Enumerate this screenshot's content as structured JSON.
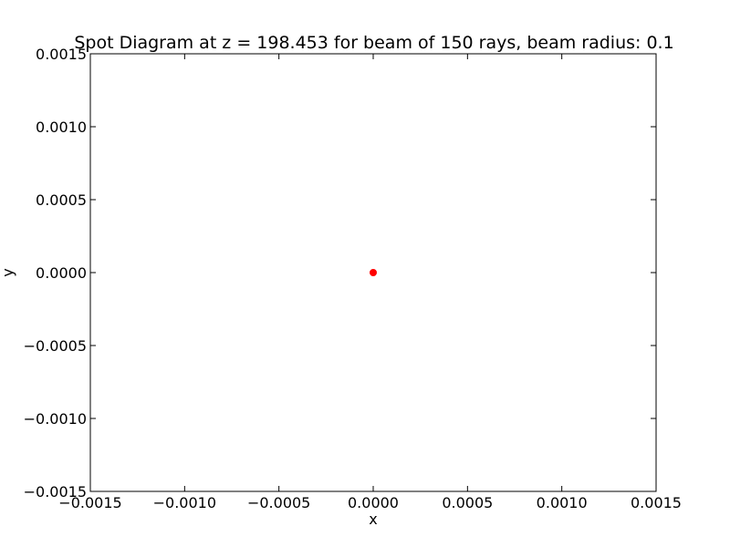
{
  "chart_data": {
    "type": "scatter",
    "title": "Spot Diagram at z = 198.453 for beam of 150 rays, beam radius: 0.1",
    "xlabel": "x",
    "ylabel": "y",
    "xlim": [
      -0.0015,
      0.0015
    ],
    "ylim": [
      -0.0015,
      0.0015
    ],
    "xticks": [
      -0.0015,
      -0.001,
      -0.0005,
      0.0,
      0.0005,
      0.001,
      0.0015
    ],
    "yticks": [
      -0.0015,
      -0.001,
      -0.0005,
      0.0,
      0.0005,
      0.001,
      0.0015
    ],
    "xtick_labels": [
      "−0.0015",
      "−0.0010",
      "−0.0005",
      "0.0000",
      "0.0005",
      "0.0010",
      "0.0015"
    ],
    "ytick_labels": [
      "−0.0015",
      "−0.0010",
      "−0.0005",
      "0.0000",
      "0.0005",
      "0.0010",
      "0.0015"
    ],
    "grid": false,
    "series": [
      {
        "color": "#ff0000",
        "marker": "circle",
        "points": [
          [
            0.0,
            0.0
          ]
        ]
      }
    ]
  }
}
